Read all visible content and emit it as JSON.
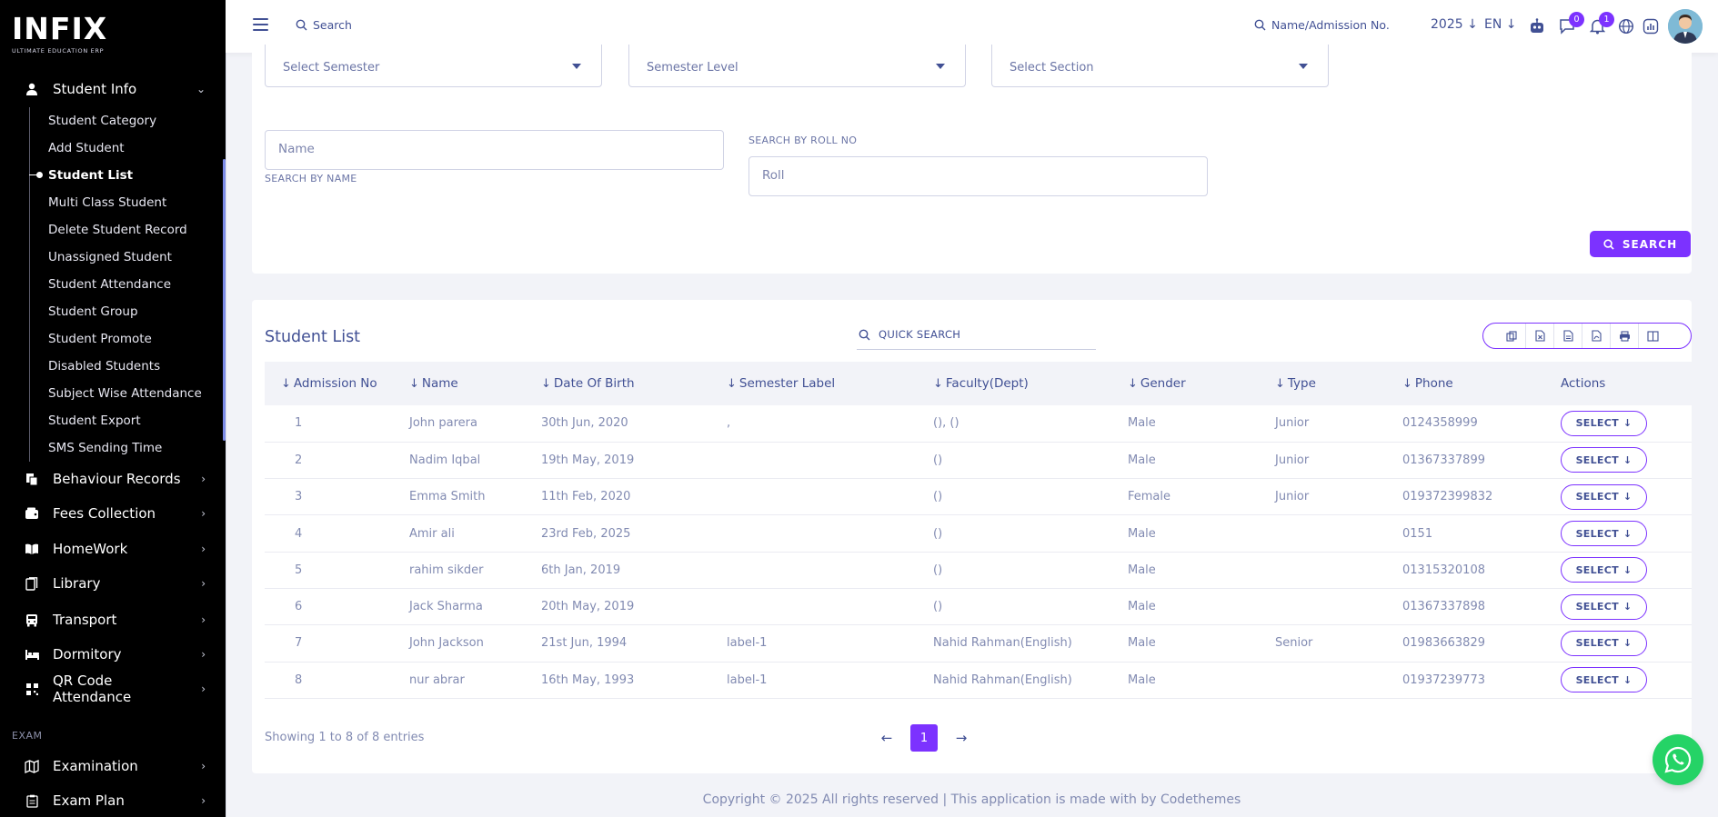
{
  "brand": {
    "logo_text": "INFIX",
    "tagline": "ULTIMATE EDUCATION ERP"
  },
  "sidebar": {
    "student_info": {
      "label": "Student Info",
      "icon": "user-icon"
    },
    "submenu": [
      {
        "label": "Student Category"
      },
      {
        "label": "Add Student"
      },
      {
        "label": "Student List",
        "active": true
      },
      {
        "label": "Multi Class Student"
      },
      {
        "label": "Delete Student Record"
      },
      {
        "label": "Unassigned Student"
      },
      {
        "label": "Student Attendance"
      },
      {
        "label": "Student Group"
      },
      {
        "label": "Student Promote"
      },
      {
        "label": "Disabled Students"
      },
      {
        "label": "Subject Wise Attendance"
      },
      {
        "label": "Student Export"
      },
      {
        "label": "SMS Sending Time"
      }
    ],
    "menus": [
      {
        "label": "Behaviour Records",
        "icon": "behaviour-icon"
      },
      {
        "label": "Fees Collection",
        "icon": "wallet-icon"
      },
      {
        "label": "HomeWork",
        "icon": "book-open-icon"
      },
      {
        "label": "Library",
        "icon": "library-icon"
      },
      {
        "label": "Transport",
        "icon": "bus-icon"
      },
      {
        "label": "Dormitory",
        "icon": "bed-icon"
      },
      {
        "label": "QR Code Attendance",
        "icon": "qr-icon"
      }
    ],
    "section_label": "EXAM",
    "exam_menus": [
      {
        "label": "Examination",
        "icon": "map-icon"
      },
      {
        "label": "Exam Plan",
        "icon": "clipboard-icon"
      }
    ]
  },
  "topbar": {
    "search_label": "Search",
    "admission_search": "Name/Admission No.",
    "year": "2025",
    "language": "EN",
    "chat_count": "0",
    "notification_count": "1"
  },
  "filters": {
    "semester_placeholder": "Select Semester",
    "semester_level_placeholder": "Semester Level",
    "section_placeholder": "Select Section",
    "name_placeholder": "Name",
    "name_caption": "SEARCH BY NAME",
    "roll_caption": "SEARCH BY ROLL NO",
    "roll_placeholder": "Roll",
    "search_button": "SEARCH"
  },
  "student_list": {
    "title": "Student List",
    "quick_search": "QUICK SEARCH",
    "export_buttons": [
      "copy-icon",
      "excel-icon",
      "csv-icon",
      "pdf-icon",
      "print-icon",
      "columns-icon"
    ],
    "columns": [
      "Admission No",
      "Name",
      "Date Of Birth",
      "Semester Label",
      "Faculty(Dept)",
      "Gender",
      "Type",
      "Phone",
      "Actions"
    ],
    "rows": [
      {
        "adm": "1",
        "name": "John parera",
        "dob": "30th Jun, 2020",
        "sem": ",",
        "fac": "(), ()",
        "gender": "Male",
        "type": "Junior",
        "phone": "0124358999",
        "action": "SELECT"
      },
      {
        "adm": "2",
        "name": "Nadim Iqbal",
        "dob": "19th May, 2019",
        "sem": "",
        "fac": "()",
        "gender": "Male",
        "type": "Junior",
        "phone": "01367337899",
        "action": "SELECT"
      },
      {
        "adm": "3",
        "name": "Emma Smith",
        "dob": "11th Feb, 2020",
        "sem": "",
        "fac": "()",
        "gender": "Female",
        "type": "Junior",
        "phone": "019372399832",
        "action": "SELECT"
      },
      {
        "adm": "4",
        "name": "Amir ali",
        "dob": "23rd Feb, 2025",
        "sem": "",
        "fac": "()",
        "gender": "Male",
        "type": "",
        "phone": "0151",
        "action": "SELECT"
      },
      {
        "adm": "5",
        "name": "rahim sikder",
        "dob": "6th Jan, 2019",
        "sem": "",
        "fac": "()",
        "gender": "Male",
        "type": "",
        "phone": "01315320108",
        "action": "SELECT"
      },
      {
        "adm": "6",
        "name": "Jack Sharma",
        "dob": "20th May, 2019",
        "sem": "",
        "fac": "()",
        "gender": "Male",
        "type": "",
        "phone": "01367337898",
        "action": "SELECT"
      },
      {
        "adm": "7",
        "name": "John Jackson",
        "dob": "21st Jun, 1994",
        "sem": "label-1",
        "fac": "Nahid Rahman(English)",
        "gender": "Male",
        "type": "Senior",
        "phone": "01983663829",
        "action": "SELECT"
      },
      {
        "adm": "8",
        "name": "nur abrar",
        "dob": "16th May, 1993",
        "sem": "label-1",
        "fac": "Nahid Rahman(English)",
        "gender": "Male",
        "type": "",
        "phone": "01937239773",
        "action": "SELECT"
      }
    ],
    "showing": "Showing 1 to 8 of 8 entries",
    "current_page": "1"
  },
  "footer": {
    "text": "Copyright © 2025 All rights reserved | This application is made with by Codethemes"
  },
  "colors": {
    "accent": "#7c32ff",
    "text": "#415094",
    "muted": "#828bb2",
    "sidebar": "#000000",
    "whatsapp": "#25d366"
  }
}
